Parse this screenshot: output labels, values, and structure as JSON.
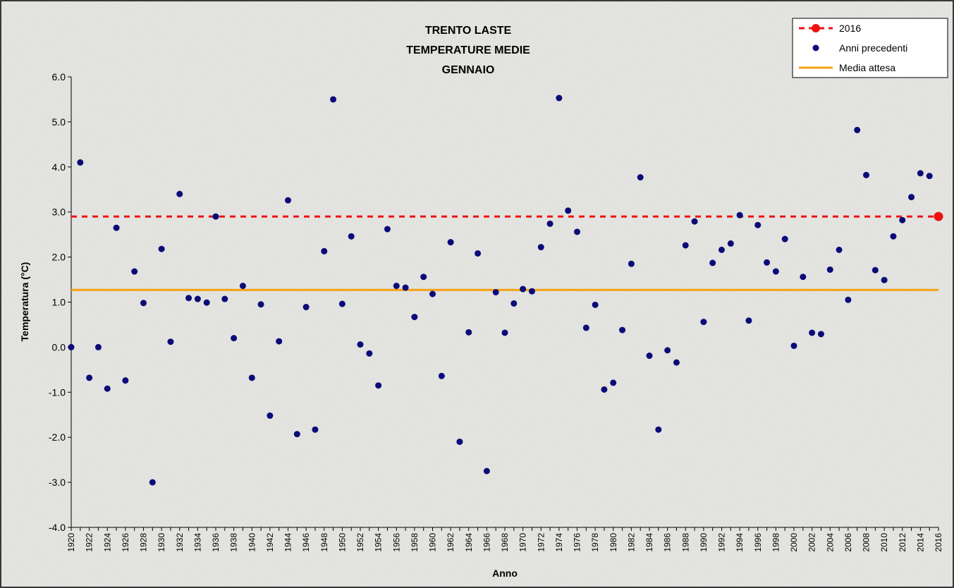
{
  "chart_data": {
    "type": "scatter",
    "title": [
      "TRENTO LASTE",
      "TEMPERATURE MEDIE",
      "GENNAIO"
    ],
    "xlabel": "Anno",
    "ylabel": "Temperatura (°C)",
    "xlim": [
      1920,
      2016
    ],
    "ylim": [
      -4.0,
      6.0
    ],
    "yticks": [
      "-4.0",
      "-3.0",
      "-2.0",
      "-1.0",
      "0.0",
      "1.0",
      "2.0",
      "3.0",
      "4.0",
      "5.0",
      "6.0"
    ],
    "xticks": [
      "1920",
      "1922",
      "1924",
      "1926",
      "1928",
      "1930",
      "1932",
      "1934",
      "1936",
      "1938",
      "1940",
      "1942",
      "1944",
      "1946",
      "1948",
      "1950",
      "1952",
      "1954",
      "1956",
      "1958",
      "1960",
      "1962",
      "1964",
      "1966",
      "1968",
      "1970",
      "1972",
      "1974",
      "1976",
      "1978",
      "1980",
      "1982",
      "1984",
      "1986",
      "1988",
      "1990",
      "1992",
      "1994",
      "1996",
      "1998",
      "2000",
      "2002",
      "2004",
      "2006",
      "2008",
      "2010",
      "2012",
      "2014",
      "2016"
    ],
    "grid": false,
    "legend_position": "top-right",
    "series": [
      {
        "name": "2016",
        "kind": "point_with_dashed_line",
        "color": "#ee1111",
        "points": [
          [
            2016,
            2.9
          ]
        ]
      },
      {
        "name": "Anni precedenti",
        "kind": "scatter",
        "color": "#0a0a78",
        "points": [
          [
            1920,
            0.0
          ],
          [
            1921,
            4.1
          ],
          [
            1922,
            -0.68
          ],
          [
            1923,
            0.0
          ],
          [
            1924,
            -0.92
          ],
          [
            1925,
            2.65
          ],
          [
            1926,
            -0.74
          ],
          [
            1927,
            1.68
          ],
          [
            1928,
            0.98
          ],
          [
            1929,
            -3.0
          ],
          [
            1930,
            2.18
          ],
          [
            1931,
            0.12
          ],
          [
            1932,
            3.4
          ],
          [
            1933,
            1.09
          ],
          [
            1934,
            1.07
          ],
          [
            1935,
            0.99
          ],
          [
            1936,
            2.9
          ],
          [
            1937,
            1.07
          ],
          [
            1938,
            0.2
          ],
          [
            1939,
            1.36
          ],
          [
            1940,
            -0.68
          ],
          [
            1941,
            0.95
          ],
          [
            1942,
            -1.52
          ],
          [
            1943,
            0.13
          ],
          [
            1944,
            3.26
          ],
          [
            1945,
            -1.93
          ],
          [
            1946,
            0.89
          ],
          [
            1947,
            -1.83
          ],
          [
            1948,
            2.13
          ],
          [
            1949,
            5.5
          ],
          [
            1950,
            0.96
          ],
          [
            1951,
            2.46
          ],
          [
            1952,
            0.06
          ],
          [
            1953,
            -0.14
          ],
          [
            1954,
            -0.85
          ],
          [
            1955,
            2.62
          ],
          [
            1956,
            1.36
          ],
          [
            1957,
            1.32
          ],
          [
            1958,
            0.67
          ],
          [
            1959,
            1.56
          ],
          [
            1960,
            1.18
          ],
          [
            1961,
            -0.64
          ],
          [
            1962,
            2.33
          ],
          [
            1963,
            -2.1
          ],
          [
            1964,
            0.33
          ],
          [
            1965,
            2.08
          ],
          [
            1966,
            -2.75
          ],
          [
            1967,
            1.22
          ],
          [
            1968,
            0.32
          ],
          [
            1969,
            0.97
          ],
          [
            1970,
            1.29
          ],
          [
            1971,
            1.24
          ],
          [
            1972,
            2.22
          ],
          [
            1973,
            2.74
          ],
          [
            1974,
            5.53
          ],
          [
            1975,
            3.03
          ],
          [
            1976,
            2.56
          ],
          [
            1977,
            0.43
          ],
          [
            1978,
            0.94
          ],
          [
            1979,
            -0.94
          ],
          [
            1980,
            -0.79
          ],
          [
            1981,
            0.38
          ],
          [
            1982,
            1.85
          ],
          [
            1983,
            3.77
          ],
          [
            1984,
            -0.19
          ],
          [
            1985,
            -1.83
          ],
          [
            1986,
            -0.07
          ],
          [
            1987,
            -0.34
          ],
          [
            1988,
            2.26
          ],
          [
            1989,
            2.79
          ],
          [
            1990,
            0.56
          ],
          [
            1991,
            1.87
          ],
          [
            1992,
            2.16
          ],
          [
            1993,
            2.3
          ],
          [
            1994,
            2.93
          ],
          [
            1995,
            0.59
          ],
          [
            1996,
            2.71
          ],
          [
            1997,
            1.88
          ],
          [
            1998,
            1.68
          ],
          [
            1999,
            2.4
          ],
          [
            2000,
            0.03
          ],
          [
            2001,
            1.56
          ],
          [
            2002,
            0.32
          ],
          [
            2003,
            0.29
          ],
          [
            2004,
            1.72
          ],
          [
            2005,
            2.16
          ],
          [
            2006,
            1.05
          ],
          [
            2007,
            4.82
          ],
          [
            2008,
            3.82
          ],
          [
            2009,
            1.71
          ],
          [
            2010,
            1.49
          ],
          [
            2011,
            2.46
          ],
          [
            2012,
            2.82
          ],
          [
            2013,
            3.33
          ],
          [
            2014,
            3.86
          ],
          [
            2015,
            3.8
          ]
        ]
      },
      {
        "name": "Media attesa",
        "kind": "horizontal_line",
        "color": "#f5a012",
        "value": 1.27
      }
    ]
  }
}
